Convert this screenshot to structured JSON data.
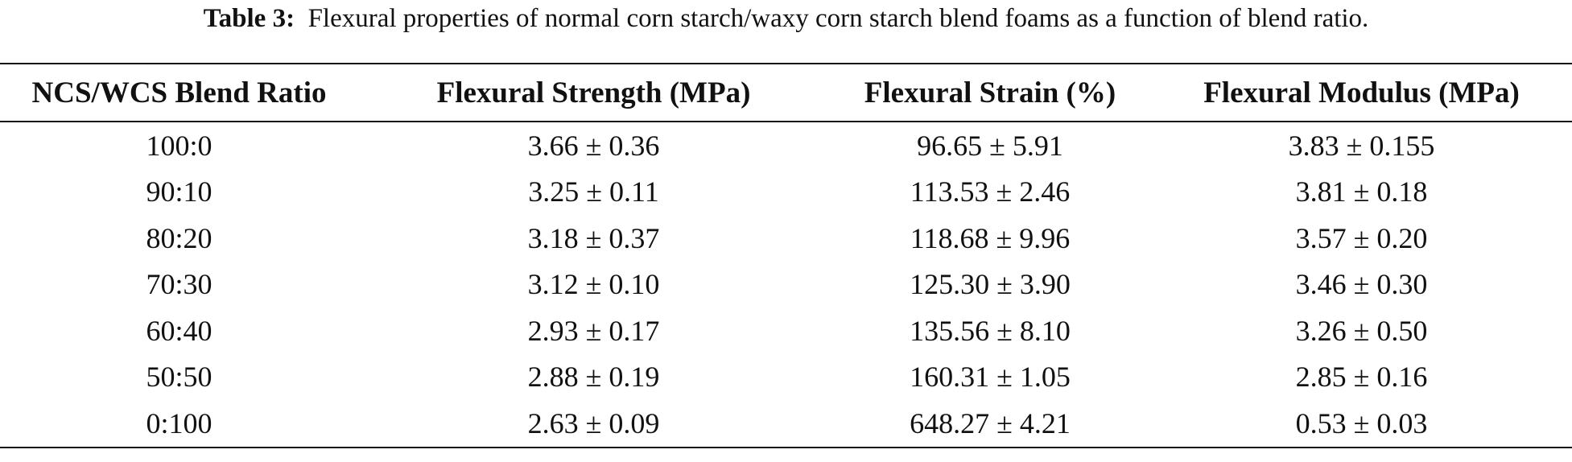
{
  "caption": {
    "label": "Table 3:",
    "text": "Flexural properties of normal corn starch/waxy corn starch blend foams as a function of blend ratio."
  },
  "table": {
    "headers": [
      "NCS/WCS Blend Ratio",
      "Flexural Strength (MPa)",
      "Flexural Strain (%)",
      "Flexural Modulus (MPa)"
    ],
    "rows": [
      [
        "100:0",
        "3.66 ± 0.36",
        "96.65 ± 5.91",
        "3.83 ± 0.155"
      ],
      [
        "90:10",
        "3.25 ± 0.11",
        "113.53 ± 2.46",
        "3.81 ± 0.18"
      ],
      [
        "80:20",
        "3.18 ± 0.37",
        "118.68 ± 9.96",
        "3.57 ± 0.20"
      ],
      [
        "70:30",
        "3.12 ± 0.10",
        "125.30 ± 3.90",
        "3.46 ± 0.30"
      ],
      [
        "60:40",
        "2.93 ± 0.17",
        "135.56 ± 8.10",
        "3.26 ± 0.50"
      ],
      [
        "50:50",
        "2.88 ± 0.19",
        "160.31 ± 1.05",
        "2.85 ± 0.16"
      ],
      [
        "0:100",
        "2.63 ± 0.09",
        "648.27 ± 4.21",
        "0.53 ± 0.03"
      ]
    ]
  }
}
